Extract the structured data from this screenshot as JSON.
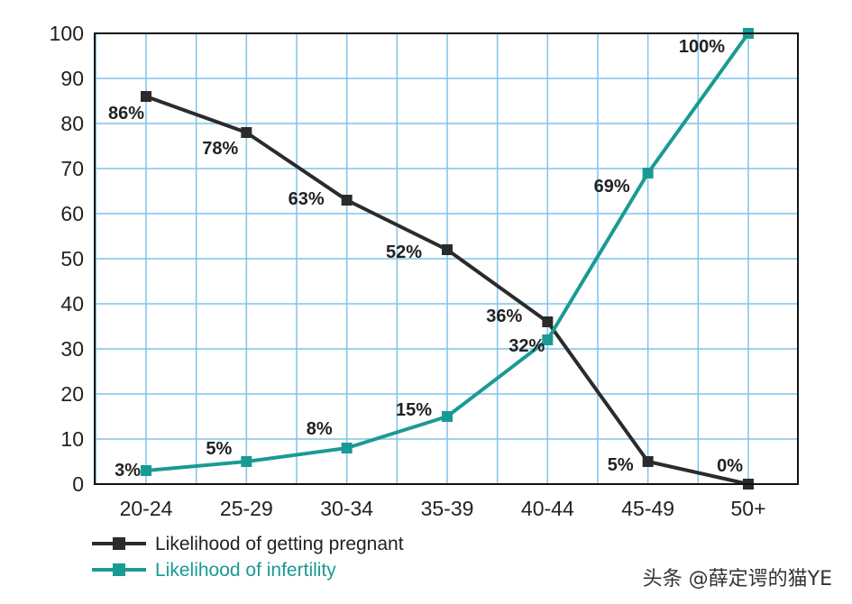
{
  "chart_data": {
    "type": "line",
    "categories": [
      "20-24",
      "25-29",
      "30-34",
      "35-39",
      "40-44",
      "45-49",
      "50+"
    ],
    "ylim": [
      0,
      100
    ],
    "yticks": [
      0,
      10,
      20,
      30,
      40,
      50,
      60,
      70,
      80,
      90,
      100
    ],
    "grid": true,
    "title": "",
    "xlabel": "",
    "ylabel": "",
    "legend_position": "bottom-left",
    "series": [
      {
        "name": "Likelihood of getting pregnant",
        "color": "#2b2b2b",
        "values": [
          86,
          78,
          63,
          52,
          36,
          5,
          0
        ],
        "labels": [
          "86%",
          "78%",
          "63%",
          "52%",
          "36%",
          "5%",
          "0%"
        ]
      },
      {
        "name": "Likelihood of infertility",
        "color": "#1a9a94",
        "values": [
          3,
          5,
          8,
          15,
          32,
          69,
          100
        ],
        "labels": [
          "3%",
          "5%",
          "8%",
          "15%",
          "32%",
          "69%",
          "100%"
        ]
      }
    ]
  },
  "watermark": "头条 @薛定谔的猫YE",
  "colors": {
    "grid": "#7fc3e8",
    "frame": "#111111",
    "background": "#ffffff"
  }
}
